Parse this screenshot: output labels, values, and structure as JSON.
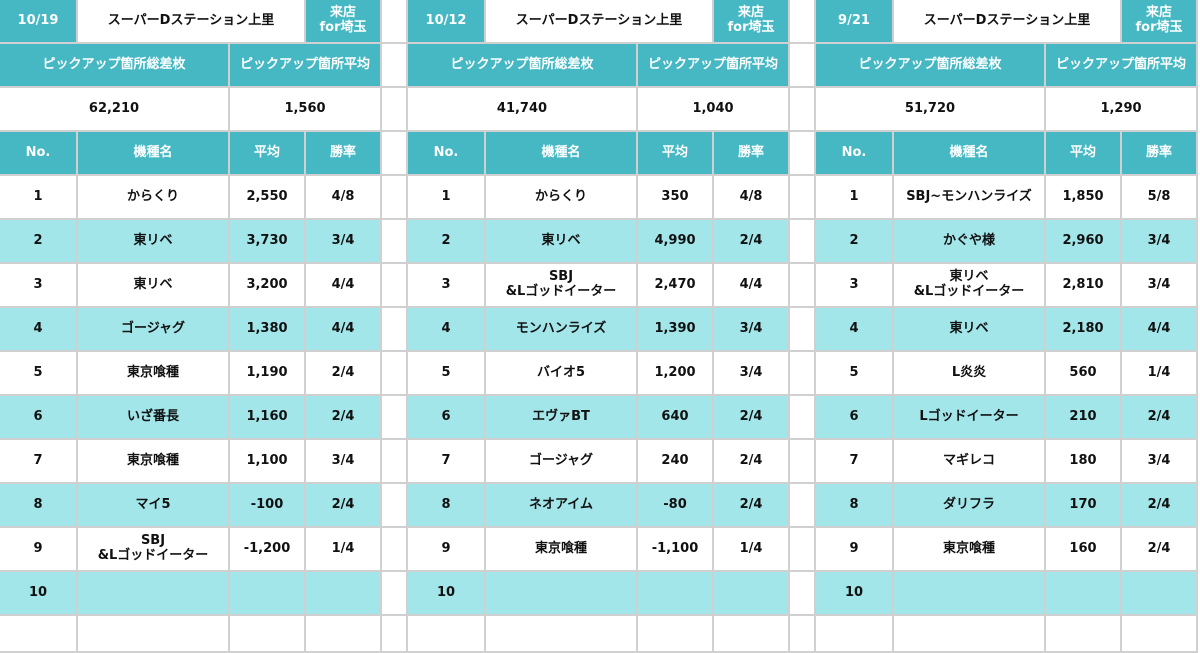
{
  "colors": {
    "header": "#45b8c3",
    "row_alt": "#a2e6ea",
    "row_plain": "#ffffff",
    "border": "#d0d0d0"
  },
  "labels": {
    "total": "ピックアップ箇所総差枚",
    "avg": "ピックアップ箇所平均",
    "col_no": "No.",
    "col_name": "機種名",
    "col_avg": "平均",
    "col_win": "勝率"
  },
  "panels": [
    {
      "date": "10/19",
      "store": "スーパーDステーション上里",
      "visit": "来店\nfor埼玉",
      "total": "62,210",
      "avg": "1,560",
      "rows": [
        {
          "no": "1",
          "name": "からくり",
          "avg": "2,550",
          "win": "4/8"
        },
        {
          "no": "2",
          "name": "東リベ",
          "avg": "3,730",
          "win": "3/4"
        },
        {
          "no": "3",
          "name": "東リベ",
          "avg": "3,200",
          "win": "4/4"
        },
        {
          "no": "4",
          "name": "ゴージャグ",
          "avg": "1,380",
          "win": "4/4"
        },
        {
          "no": "5",
          "name": "東京喰種",
          "avg": "1,190",
          "win": "2/4"
        },
        {
          "no": "6",
          "name": "いざ番長",
          "avg": "1,160",
          "win": "2/4"
        },
        {
          "no": "7",
          "name": "東京喰種",
          "avg": "1,100",
          "win": "3/4"
        },
        {
          "no": "8",
          "name": "マイ5",
          "avg": "-100",
          "win": "2/4"
        },
        {
          "no": "9",
          "name": "SBJ\n&Lゴッドイーター",
          "avg": "-1,200",
          "win": "1/4"
        },
        {
          "no": "10",
          "name": "",
          "avg": "",
          "win": ""
        },
        {
          "no": "",
          "name": "",
          "avg": "",
          "win": ""
        }
      ]
    },
    {
      "date": "10/12",
      "store": "スーパーDステーション上里",
      "visit": "来店\nfor埼玉",
      "total": "41,740",
      "avg": "1,040",
      "rows": [
        {
          "no": "1",
          "name": "からくり",
          "avg": "350",
          "win": "4/8"
        },
        {
          "no": "2",
          "name": "東リベ",
          "avg": "4,990",
          "win": "2/4"
        },
        {
          "no": "3",
          "name": "SBJ\n&Lゴッドイーター",
          "avg": "2,470",
          "win": "4/4"
        },
        {
          "no": "4",
          "name": "モンハンライズ",
          "avg": "1,390",
          "win": "3/4"
        },
        {
          "no": "5",
          "name": "バイオ5",
          "avg": "1,200",
          "win": "3/4"
        },
        {
          "no": "6",
          "name": "エヴァBT",
          "avg": "640",
          "win": "2/4"
        },
        {
          "no": "7",
          "name": "ゴージャグ",
          "avg": "240",
          "win": "2/4"
        },
        {
          "no": "8",
          "name": "ネオアイム",
          "avg": "-80",
          "win": "2/4"
        },
        {
          "no": "9",
          "name": "東京喰種",
          "avg": "-1,100",
          "win": "1/4"
        },
        {
          "no": "10",
          "name": "",
          "avg": "",
          "win": ""
        },
        {
          "no": "",
          "name": "",
          "avg": "",
          "win": ""
        }
      ]
    },
    {
      "date": "9/21",
      "store": "スーパーDステーション上里",
      "visit": "来店\nfor埼玉",
      "total": "51,720",
      "avg": "1,290",
      "rows": [
        {
          "no": "1",
          "name": "SBJ~モンハンライズ",
          "avg": "1,850",
          "win": "5/8"
        },
        {
          "no": "2",
          "name": "かぐや様",
          "avg": "2,960",
          "win": "3/4"
        },
        {
          "no": "3",
          "name": "東リベ\n&Lゴッドイーター",
          "avg": "2,810",
          "win": "3/4"
        },
        {
          "no": "4",
          "name": "東リベ",
          "avg": "2,180",
          "win": "4/4"
        },
        {
          "no": "5",
          "name": "L炎炎",
          "avg": "560",
          "win": "1/4"
        },
        {
          "no": "6",
          "name": "Lゴッドイーター",
          "avg": "210",
          "win": "2/4"
        },
        {
          "no": "7",
          "name": "マギレコ",
          "avg": "180",
          "win": "3/4"
        },
        {
          "no": "8",
          "name": "ダリフラ",
          "avg": "170",
          "win": "2/4"
        },
        {
          "no": "9",
          "name": "東京喰種",
          "avg": "160",
          "win": "2/4"
        },
        {
          "no": "10",
          "name": "",
          "avg": "",
          "win": ""
        },
        {
          "no": "",
          "name": "",
          "avg": "",
          "win": ""
        }
      ]
    }
  ]
}
